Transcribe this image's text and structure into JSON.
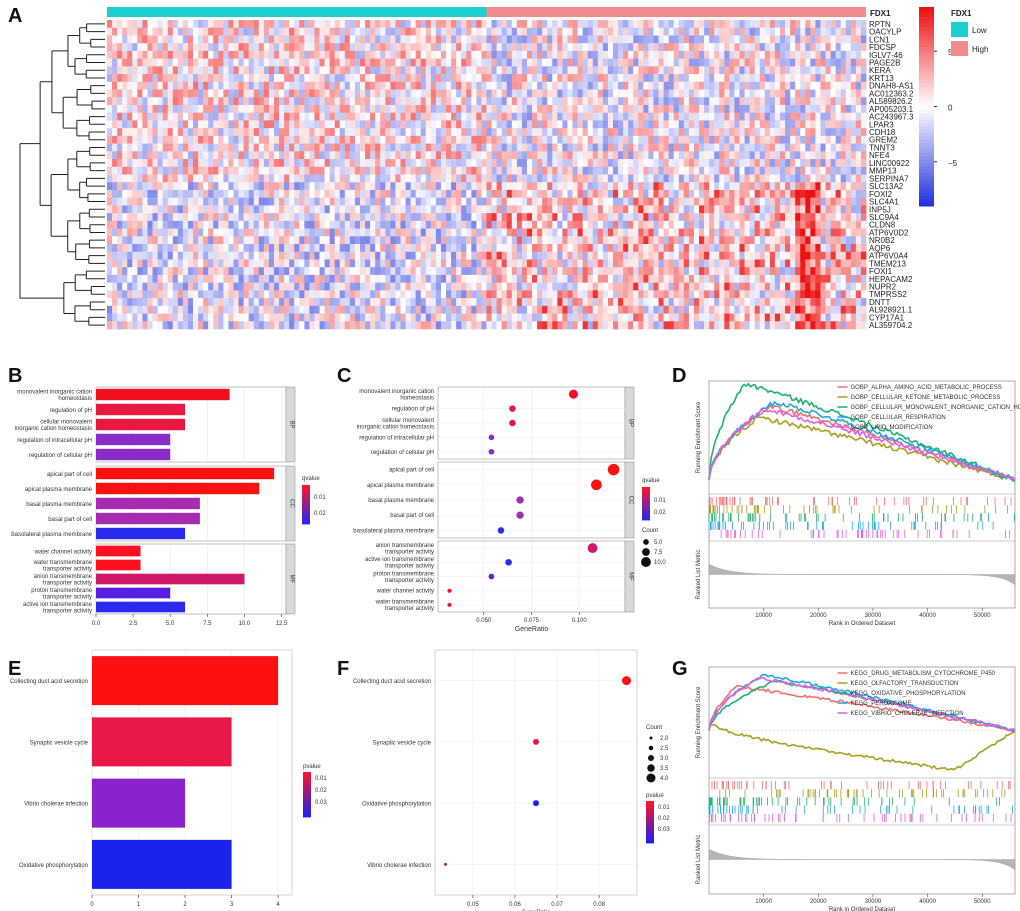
{
  "panels": [
    "A",
    "B",
    "C",
    "D",
    "E",
    "F",
    "G"
  ],
  "heatmap": {
    "annotation_title": "FDX1",
    "groups": [
      {
        "name": "Low",
        "color": "#1ecfcf"
      },
      {
        "name": "High",
        "color": "#f28c8c"
      }
    ],
    "low_fraction": 0.5,
    "genes": [
      "RPTN",
      "OACYLP",
      "LCN1",
      "FDCSP",
      "IGLV7-46",
      "PAGE2B",
      "KERA",
      "KRT13",
      "DNAH8-AS1",
      "AC012363.2",
      "AL589826.2",
      "AP005203.1",
      "AC243967.3",
      "LPAR3",
      "CDH18",
      "GREM2",
      "TNNT3",
      "NFE4",
      "LINC00922",
      "MMP13",
      "SERPINA7",
      "SLC13A2",
      "FOXI2",
      "SLC4A1",
      "INP5J",
      "SLC9A4",
      "CLDN8",
      "ATP6V0D2",
      "NR0B2",
      "AQP6",
      "ATP6V0A4",
      "TMEM213",
      "FOXI1",
      "HEPACAM2",
      "NUPR2",
      "TMPRSS2",
      "DNTT",
      "AL928921.1",
      "CYP17A1",
      "AL359704.2"
    ],
    "color_scale": {
      "ticks": [
        "5",
        "0",
        "−5"
      ],
      "values": [
        5,
        0,
        -5
      ],
      "min": -9,
      "max": 9,
      "low": "#2233dd",
      "mid": "#ffffff",
      "high": "#ee1111"
    }
  },
  "chart_data": [
    {
      "panel": "B",
      "type": "bar",
      "orientation": "horizontal",
      "groups": [
        {
          "name": "BP",
          "categories": [
            "monovalent inorganic cation\nhomeostasis",
            "regulation of pH",
            "cellular monovalent\ninorganic cation homeostasis",
            "regulation of intracellular pH",
            "regulation of cellular pH"
          ],
          "values": [
            9,
            6,
            6,
            5,
            5
          ],
          "colors": [
            "#f01020",
            "#e81840",
            "#e81840",
            "#8a2cc8",
            "#8a2cc8"
          ]
        },
        {
          "name": "CC",
          "categories": [
            "apical part of cell",
            "apical plasma membrane",
            "basal plasma membrane",
            "basal part of cell",
            "basolateral plasma membrane"
          ],
          "values": [
            12,
            11,
            7,
            7,
            6
          ],
          "colors": [
            "#ff1010",
            "#ff1010",
            "#a52cb0",
            "#a52cb0",
            "#2a2aee"
          ]
        },
        {
          "name": "MF",
          "categories": [
            "water channel activity",
            "water transmembrane\ntransporter activity",
            "anion transmembrane\ntransporter activity",
            "proton transmembrane\ntransporter activity",
            "active ion transmembrane\ntransporter activity"
          ],
          "values": [
            3,
            3,
            10,
            5,
            6
          ],
          "colors": [
            "#ff1020",
            "#ff1020",
            "#d01868",
            "#5a1ee0",
            "#2a2aee"
          ]
        }
      ],
      "xticks": [
        "0.0",
        "2.5",
        "5.0",
        "7.5",
        "10.0",
        "12.5"
      ],
      "xlim": [
        0,
        12.8
      ],
      "legend": {
        "title": "qvalue",
        "ticks": [
          "0.01",
          "0.02"
        ]
      }
    },
    {
      "panel": "C",
      "type": "scatter",
      "groups": [
        {
          "name": "BP",
          "categories": [
            "monovalent inorganic cation\nhomeostasis",
            "regulation of pH",
            "cellular monovalent\ninorganic cation homeostasis",
            "regulation of intracellular pH",
            "regulation of cellular pH"
          ],
          "x": [
            0.097,
            0.065,
            0.065,
            0.054,
            0.054
          ],
          "count": [
            9,
            6,
            6,
            5,
            5
          ],
          "colors": [
            "#f01020",
            "#e81840",
            "#e81840",
            "#8a2cc8",
            "#8a2cc8"
          ]
        },
        {
          "name": "CC",
          "categories": [
            "apical part of cell",
            "apical plasma membrane",
            "basal plasma membrane",
            "basal part of cell",
            "basolateral plasma membrane"
          ],
          "x": [
            0.118,
            0.109,
            0.069,
            0.069,
            0.059
          ],
          "count": [
            12,
            11,
            7,
            7,
            6
          ],
          "colors": [
            "#ff1010",
            "#ff1010",
            "#a52cb0",
            "#a52cb0",
            "#2a2aee"
          ]
        },
        {
          "name": "MF",
          "categories": [
            "anion transmembrane\ntransporter activity",
            "active ion transmembrane\ntransporter activity",
            "proton transmembrane\ntransporter activity",
            "water channel activity",
            "water transmembrane\ntransporter activity"
          ],
          "x": [
            0.107,
            0.063,
            0.054,
            0.032,
            0.032
          ],
          "count": [
            10,
            6,
            5,
            3,
            3
          ],
          "colors": [
            "#d01868",
            "#2a2aee",
            "#5a1ee0",
            "#ff1020",
            "#ff1020"
          ]
        }
      ],
      "xlabel": "GeneRatio",
      "xticks": [
        "0.050",
        "0.075",
        "0.100"
      ],
      "xtick_values": [
        0.05,
        0.075,
        0.1
      ],
      "xlim": [
        0.026,
        0.124
      ],
      "legend": {
        "qvalue_title": "qvalue",
        "qvalue_ticks": [
          "0.01",
          "0.02"
        ],
        "count_title": "Count",
        "count_ticks": [
          "5.0",
          "7.5",
          "10.0"
        ]
      }
    },
    {
      "panel": "D",
      "type": "line",
      "ylabel": "Running Enrichment Score",
      "ylabel2": "Ranked List Metric",
      "xlabel": "Rank in Ordered Dataset",
      "xticks": [
        "10000",
        "20000",
        "30000",
        "40000",
        "50000"
      ],
      "xtick_values": [
        10000,
        20000,
        30000,
        40000,
        50000
      ],
      "xlim": [
        0,
        56000
      ],
      "ylim": [
        -0.1,
        0.7
      ],
      "series": [
        {
          "name": "GOBP_ALPHA_AMINO_ACID_METABOLIC_PROCESS",
          "color": "#f07070",
          "peak_rank": 11000,
          "peak": 0.52
        },
        {
          "name": "GOBP_CELLULAR_KETONE_METABOLIC_PROCESS",
          "color": "#a8a020",
          "peak_rank": 9000,
          "peak": 0.44
        },
        {
          "name": "GOBP_CELLULAR_MONOVALENT_INORGANIC_CATION_HOMEOSTASIS",
          "color": "#20b070",
          "peak_rank": 6500,
          "peak": 0.68
        },
        {
          "name": "GOBP_CELLULAR_RESPIRATION",
          "color": "#20a8e0",
          "peak_rank": 12000,
          "peak": 0.55
        },
        {
          "name": "GOBP_LIPID_MODIFICATION",
          "color": "#e060e0",
          "peak_rank": 10000,
          "peak": 0.5
        }
      ]
    },
    {
      "panel": "E",
      "type": "bar",
      "orientation": "horizontal",
      "categories": [
        "Collecting duct acid secretion",
        "Synaptic vesicle cycle",
        "Vibrio cholerae infection",
        "Oxidative phosphorylation"
      ],
      "values": [
        4,
        3,
        2,
        3
      ],
      "colors": [
        "#ff1010",
        "#e81848",
        "#8a22cc",
        "#1a22ee"
      ],
      "xticks": [
        "0",
        "1",
        "2",
        "3",
        "4"
      ],
      "xlim": [
        0,
        4.3
      ],
      "legend": {
        "title": "pvalue",
        "ticks": [
          "0.01",
          "0.02",
          "0.03"
        ]
      }
    },
    {
      "panel": "F",
      "type": "scatter",
      "categories": [
        "Collecting duct acid secretion",
        "Synaptic vesicle cycle",
        "Oxidative phosphorylation",
        "Vibrio cholerae infection"
      ],
      "x": [
        0.0865,
        0.065,
        0.065,
        0.0435
      ],
      "count": [
        4,
        3,
        3,
        2
      ],
      "colors": [
        "#ff1010",
        "#e81848",
        "#1a22ee",
        "#8a22cc"
      ],
      "xlabel": "GeneRatio",
      "xticks": [
        "0.05",
        "0.06",
        "0.07",
        "0.08"
      ],
      "xtick_values": [
        0.05,
        0.06,
        0.07,
        0.08
      ],
      "xlim": [
        0.041,
        0.089
      ],
      "legend": {
        "count_title": "Count",
        "count_ticks": [
          "2.0",
          "2.5",
          "3.0",
          "3.5",
          "4.0"
        ],
        "pvalue_title": "pvalue",
        "pvalue_ticks": [
          "0.01",
          "0.02",
          "0.03"
        ]
      }
    },
    {
      "panel": "G",
      "type": "line",
      "ylabel": "Running Enrichment Score",
      "ylabel2": "Ranked List Metric",
      "xlabel": "Rank in Ordered Dataset",
      "xticks": [
        "10000",
        "20000",
        "30000",
        "40000",
        "50000"
      ],
      "xtick_values": [
        10000,
        20000,
        30000,
        40000,
        50000
      ],
      "xlim": [
        0,
        56000
      ],
      "ylim": [
        -0.6,
        0.8
      ],
      "series": [
        {
          "name": "KEGG_DRUG_METABOLISM_CYTOCHROME_P450",
          "color": "#f07070",
          "peak_rank": 5000,
          "peak": 0.55
        },
        {
          "name": "KEGG_OLFACTORY_TRANSDUCTION",
          "color": "#a8a020",
          "peak_rank": 0,
          "peak": -0.5
        },
        {
          "name": "KEGG_OXIDATIVE_PHOSPHORYLATION",
          "color": "#20b070",
          "peak_rank": 12000,
          "peak": 0.62
        },
        {
          "name": "KEGG_PEROXISOME",
          "color": "#20a8e0",
          "peak_rank": 10000,
          "peak": 0.7
        },
        {
          "name": "KEGG_VIBRIO_CHOLERAE_INFECTION",
          "color": "#e060e0",
          "peak_rank": 9000,
          "peak": 0.66
        }
      ]
    }
  ]
}
